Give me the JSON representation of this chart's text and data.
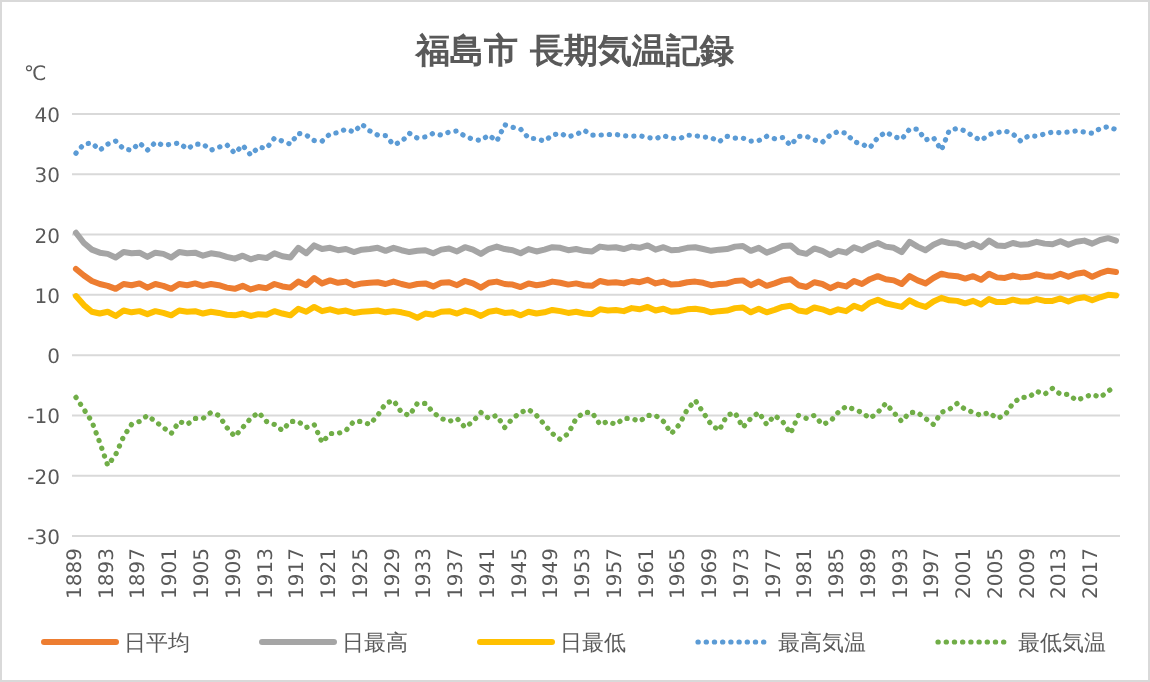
{
  "chart_data": {
    "type": "line",
    "title": "福島市 長期気温記録",
    "ylabel": "℃",
    "categories": [
      "1889",
      null,
      null,
      null,
      "1893",
      null,
      null,
      null,
      "1897",
      null,
      null,
      null,
      "1901",
      null,
      null,
      null,
      "1905",
      null,
      null,
      null,
      "1909",
      null,
      null,
      null,
      "1913",
      null,
      null,
      null,
      "1917",
      null,
      null,
      null,
      "1921",
      null,
      null,
      null,
      "1925",
      null,
      null,
      null,
      "1929",
      null,
      null,
      null,
      "1933",
      null,
      null,
      null,
      "1937",
      null,
      null,
      null,
      "1941",
      null,
      null,
      null,
      "1945",
      null,
      null,
      null,
      "1949",
      null,
      null,
      null,
      "1953",
      null,
      null,
      null,
      "1957",
      null,
      null,
      null,
      "1961",
      null,
      null,
      null,
      "1965",
      null,
      null,
      null,
      "1969",
      null,
      null,
      null,
      "1973",
      null,
      null,
      null,
      "1977",
      null,
      null,
      null,
      "1981",
      null,
      null,
      null,
      "1985",
      null,
      null,
      null,
      "1989",
      null,
      null,
      null,
      "1993",
      null,
      null,
      null,
      "1997",
      null,
      null,
      null,
      "2001",
      null,
      null,
      null,
      "2005",
      null,
      null,
      null,
      "2009",
      null,
      null,
      null,
      "2013",
      null,
      null,
      null,
      "2017",
      null,
      null,
      null
    ],
    "ylim": [
      -30,
      40
    ],
    "yticks": [
      -30,
      -20,
      -10,
      0,
      10,
      20,
      30,
      40
    ],
    "grid": "y",
    "legend": "bottom",
    "marker": "none",
    "series": [
      {
        "name": "日平均",
        "color": "#ed7d31",
        "line_style": "solid",
        "values": [
          14.3,
          13.2,
          12.3,
          11.8,
          11.5,
          11.0,
          11.8,
          11.6,
          11.9,
          11.2,
          11.8,
          11.5,
          11.0,
          11.8,
          11.6,
          11.9,
          11.5,
          11.8,
          11.6,
          11.2,
          11.0,
          11.5,
          10.9,
          11.3,
          11.1,
          11.8,
          11.4,
          11.2,
          12.2,
          11.6,
          12.8,
          11.9,
          12.4,
          12.0,
          12.2,
          11.6,
          11.9,
          12.0,
          12.1,
          11.8,
          12.2,
          11.8,
          11.5,
          11.8,
          11.9,
          11.4,
          12.0,
          12.1,
          11.6,
          12.3,
          11.9,
          11.2,
          12.0,
          12.2,
          11.8,
          11.7,
          11.3,
          11.9,
          11.6,
          11.8,
          12.2,
          12.0,
          11.7,
          11.9,
          11.6,
          11.5,
          12.3,
          12.0,
          12.1,
          11.9,
          12.3,
          12.1,
          12.5,
          11.9,
          12.2,
          11.7,
          11.8,
          12.1,
          12.2,
          12.0,
          11.6,
          11.8,
          11.9,
          12.3,
          12.4,
          11.6,
          12.2,
          11.5,
          11.9,
          12.4,
          12.6,
          11.6,
          11.3,
          12.1,
          11.8,
          11.1,
          11.7,
          11.4,
          12.3,
          11.8,
          12.6,
          13.1,
          12.6,
          12.4,
          11.8,
          13.1,
          12.4,
          11.9,
          12.8,
          13.5,
          13.2,
          13.1,
          12.7,
          13.1,
          12.5,
          13.5,
          12.9,
          12.8,
          13.2,
          12.9,
          13.0,
          13.4,
          13.1,
          13.0,
          13.5,
          13.0,
          13.5,
          13.7,
          13.0,
          13.6,
          14.0,
          13.8
        ]
      },
      {
        "name": "日最高",
        "color": "#a5a5a5",
        "line_style": "solid",
        "values": [
          20.3,
          18.6,
          17.5,
          17.0,
          16.8,
          16.2,
          17.1,
          16.9,
          17.0,
          16.3,
          17.0,
          16.8,
          16.2,
          17.1,
          16.9,
          17.0,
          16.5,
          16.9,
          16.7,
          16.3,
          16.0,
          16.5,
          15.9,
          16.3,
          16.1,
          16.9,
          16.4,
          16.2,
          17.8,
          16.9,
          18.2,
          17.6,
          17.8,
          17.4,
          17.6,
          17.1,
          17.5,
          17.6,
          17.8,
          17.3,
          17.8,
          17.4,
          17.1,
          17.3,
          17.4,
          16.9,
          17.5,
          17.7,
          17.2,
          17.9,
          17.5,
          16.8,
          17.6,
          18.0,
          17.6,
          17.4,
          16.9,
          17.6,
          17.2,
          17.5,
          17.9,
          17.8,
          17.4,
          17.6,
          17.3,
          17.2,
          18.0,
          17.8,
          17.9,
          17.6,
          18.0,
          17.8,
          18.2,
          17.5,
          17.9,
          17.4,
          17.5,
          17.8,
          17.9,
          17.6,
          17.3,
          17.5,
          17.6,
          18.0,
          18.1,
          17.3,
          17.8,
          17.0,
          17.5,
          18.1,
          18.2,
          17.1,
          16.8,
          17.7,
          17.3,
          16.6,
          17.3,
          17.0,
          17.9,
          17.4,
          18.1,
          18.6,
          18.0,
          17.8,
          17.1,
          18.8,
          18.0,
          17.4,
          18.3,
          18.9,
          18.6,
          18.5,
          18.0,
          18.5,
          17.9,
          19.0,
          18.2,
          18.1,
          18.6,
          18.3,
          18.4,
          18.8,
          18.5,
          18.4,
          18.9,
          18.3,
          18.8,
          19.0,
          18.5,
          19.1,
          19.4,
          19.0
        ]
      },
      {
        "name": "日最低",
        "color": "#ffc000",
        "line_style": "solid",
        "values": [
          9.8,
          8.3,
          7.2,
          6.9,
          7.2,
          6.5,
          7.4,
          7.1,
          7.3,
          6.8,
          7.3,
          7.0,
          6.6,
          7.4,
          7.2,
          7.3,
          6.9,
          7.2,
          7.0,
          6.7,
          6.6,
          6.9,
          6.5,
          6.8,
          6.7,
          7.3,
          6.9,
          6.6,
          7.7,
          7.2,
          8.0,
          7.3,
          7.6,
          7.2,
          7.4,
          7.0,
          7.2,
          7.3,
          7.4,
          7.1,
          7.3,
          7.1,
          6.8,
          6.2,
          6.9,
          6.7,
          7.2,
          7.3,
          6.9,
          7.4,
          7.1,
          6.5,
          7.2,
          7.4,
          7.0,
          7.1,
          6.6,
          7.2,
          6.9,
          7.1,
          7.5,
          7.3,
          7.0,
          7.2,
          6.9,
          6.8,
          7.6,
          7.4,
          7.5,
          7.3,
          7.8,
          7.6,
          8.0,
          7.4,
          7.7,
          7.2,
          7.3,
          7.6,
          7.7,
          7.5,
          7.1,
          7.3,
          7.4,
          7.8,
          7.9,
          7.1,
          7.7,
          7.1,
          7.5,
          8.0,
          8.2,
          7.4,
          7.2,
          7.9,
          7.6,
          7.1,
          7.6,
          7.3,
          8.2,
          7.7,
          8.7,
          9.2,
          8.6,
          8.3,
          8.0,
          9.1,
          8.4,
          8.0,
          8.9,
          9.5,
          9.1,
          9.0,
          8.6,
          9.0,
          8.4,
          9.3,
          8.8,
          8.8,
          9.2,
          8.9,
          8.9,
          9.3,
          9.0,
          9.0,
          9.4,
          8.9,
          9.4,
          9.6,
          9.1,
          9.6,
          10.0,
          9.9
        ]
      },
      {
        "name": "最高気温",
        "color": "#5b9bd5",
        "line_style": "dotted",
        "values": [
          33.5,
          35.0,
          35.2,
          34.0,
          35.0,
          35.5,
          34.2,
          34.0,
          35.2,
          34.0,
          35.3,
          34.8,
          35.0,
          35.2,
          34.2,
          35.0,
          35.0,
          34.0,
          34.5,
          34.9,
          33.5,
          34.8,
          33.2,
          34.5,
          34.3,
          36.0,
          35.5,
          35.0,
          36.8,
          36.5,
          35.6,
          35.5,
          36.7,
          36.9,
          37.5,
          37.0,
          38.3,
          37.2,
          36.5,
          36.4,
          34.9,
          35.4,
          36.8,
          36.0,
          36.2,
          36.8,
          36.5,
          37.0,
          37.2,
          36.3,
          35.8,
          35.6,
          36.5,
          35.5,
          38.2,
          37.8,
          37.5,
          36.0,
          35.9,
          35.5,
          36.5,
          36.8,
          36.2,
          36.6,
          37.3,
          36.5,
          36.5,
          36.6,
          36.6,
          36.4,
          36.3,
          36.4,
          36.1,
          35.9,
          36.4,
          36.0,
          35.9,
          36.5,
          36.4,
          36.2,
          36.1,
          35.4,
          36.3,
          36.0,
          36.0,
          35.5,
          35.6,
          36.3,
          35.9,
          36.1,
          34.8,
          36.3,
          36.3,
          35.7,
          35.3,
          36.5,
          37.1,
          36.8,
          35.4,
          35.0,
          34.4,
          36.1,
          37.0,
          36.3,
          35.8,
          37.5,
          37.5,
          35.7,
          36.1,
          34.0,
          37.3,
          37.6,
          37.2,
          36.3,
          35.6,
          36.6,
          36.9,
          37.2,
          36.7,
          35.5,
          36.4,
          36.3,
          36.7,
          37.0,
          36.9,
          37.0,
          37.2,
          37.0,
          36.8,
          37.6,
          37.9,
          37.4
        ]
      },
      {
        "name": "最低気温",
        "color": "#70ad47",
        "line_style": "dotted",
        "values": [
          -7.0,
          -9.0,
          -11.0,
          -14.5,
          -18.3,
          -16.5,
          -13.5,
          -11.5,
          -11.0,
          -10.0,
          -11.0,
          -12.0,
          -13.0,
          -11.0,
          -11.5,
          -10.5,
          -10.5,
          -9.5,
          -10.0,
          -12.0,
          -13.5,
          -12.0,
          -10.5,
          -9.5,
          -11.0,
          -11.5,
          -12.5,
          -11.0,
          -11.0,
          -12.0,
          -11.5,
          -14.5,
          -13.0,
          -13.0,
          -12.5,
          -11.0,
          -11.0,
          -11.5,
          -10.0,
          -8.0,
          -7.5,
          -9.5,
          -10.0,
          -8.0,
          -8.0,
          -9.5,
          -10.5,
          -11.0,
          -10.5,
          -12.0,
          -11.0,
          -9.5,
          -10.5,
          -10.0,
          -12.0,
          -10.5,
          -9.5,
          -9.0,
          -10.0,
          -11.5,
          -13.0,
          -14.0,
          -13.0,
          -10.5,
          -9.5,
          -9.5,
          -11.5,
          -11.0,
          -11.5,
          -10.5,
          -10.5,
          -11.0,
          -10.0,
          -10.0,
          -11.0,
          -13.0,
          -11.5,
          -9.0,
          -7.5,
          -9.5,
          -11.5,
          -12.5,
          -10.0,
          -9.5,
          -12.0,
          -10.5,
          -9.5,
          -11.5,
          -10.0,
          -11.0,
          -13.0,
          -10.0,
          -10.5,
          -10.0,
          -11.5,
          -11.0,
          -9.5,
          -8.5,
          -9.0,
          -9.5,
          -10.5,
          -9.5,
          -8.0,
          -9.5,
          -11.0,
          -9.5,
          -9.5,
          -10.5,
          -11.5,
          -9.5,
          -9.0,
          -8.0,
          -9.0,
          -9.5,
          -10.0,
          -9.5,
          -10.5,
          -10.0,
          -8.0,
          -7.0,
          -7.0,
          -6.0,
          -6.5,
          -5.5,
          -6.5,
          -6.5,
          -7.5,
          -7.0,
          -6.5,
          -7.0,
          -6.0,
          -5.0
        ]
      }
    ]
  }
}
